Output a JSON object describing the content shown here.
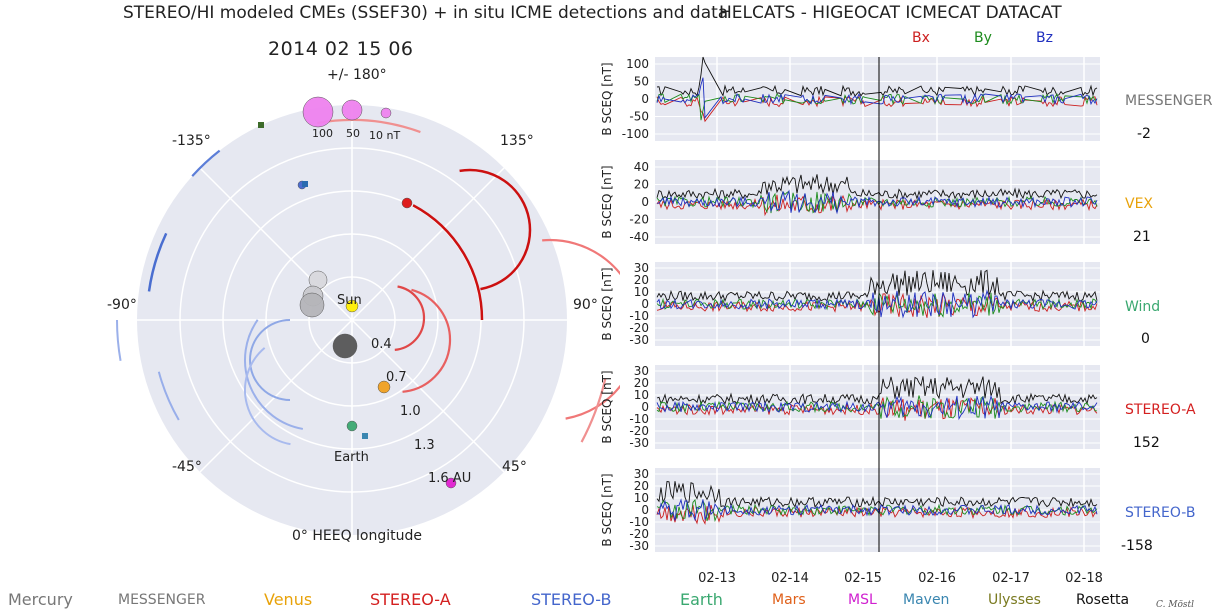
{
  "title_left": "STEREO/HI modeled CMEs (SSEF30) + in situ ICME detections and data",
  "title_right": "HELCATS - HIGEOCAT ICMECAT DATACAT",
  "datetime": "2014   02   15   06",
  "polar": {
    "angle_labels": [
      "+/- 180°",
      "-135°",
      "135°",
      "-90°",
      "90°",
      "-45°",
      "45°",
      "0° HEEQ longitude"
    ],
    "radius_labels": [
      "0.4",
      "0.7",
      "1.0",
      "1.3",
      "1.6 AU"
    ],
    "size_legend": [
      "100",
      "50",
      "10 nT"
    ],
    "sun_label": "Sun",
    "earth_label": "Earth"
  },
  "bxyz": [
    "Bx",
    "By",
    "Bz"
  ],
  "colors": {
    "bx": "#cc1f1f",
    "by": "#1e8c1e",
    "bz": "#1f2fbf",
    "messenger": "#777777",
    "vex": "#e8a20a",
    "wind": "#3aa870",
    "stereoa": "#d42020",
    "stereob": "#4466cc"
  },
  "chart_data": {
    "type": "line",
    "ylabel": "B SCEQ [nT]",
    "x_ticks": [
      "02-13",
      "02-14",
      "02-15",
      "02-16",
      "02-17",
      "02-18"
    ],
    "current_time": "02-15 06",
    "panels": [
      {
        "spacecraft": "MESSENGER",
        "value": "-2",
        "ylim": [
          -120,
          120
        ],
        "yticks": [
          "100",
          "50",
          "0",
          "-50",
          "-100"
        ]
      },
      {
        "spacecraft": "VEX",
        "value": "21",
        "ylim": [
          -48,
          48
        ],
        "yticks": [
          "40",
          "20",
          "0",
          "-20",
          "-40"
        ]
      },
      {
        "spacecraft": "Wind",
        "value": "0",
        "ylim": [
          -35,
          35
        ],
        "yticks": [
          "30",
          "20",
          "10",
          "0",
          "-10",
          "-20",
          "-30"
        ]
      },
      {
        "spacecraft": "STEREO-A",
        "value": "152",
        "ylim": [
          -35,
          35
        ],
        "yticks": [
          "30",
          "20",
          "10",
          "0",
          "-10",
          "-20",
          "-30"
        ]
      },
      {
        "spacecraft": "STEREO-B",
        "value": "-158",
        "ylim": [
          -35,
          35
        ],
        "yticks": [
          "30",
          "20",
          "10",
          "0",
          "-10",
          "-20",
          "-30"
        ]
      }
    ]
  },
  "legend": [
    "Mercury",
    "MESSENGER",
    "Venus",
    "STEREO-A",
    "STEREO-B",
    "Earth",
    "Mars",
    "MSL",
    "Maven",
    "Ulysses",
    "Rosetta"
  ],
  "credit": "C. Möstl"
}
